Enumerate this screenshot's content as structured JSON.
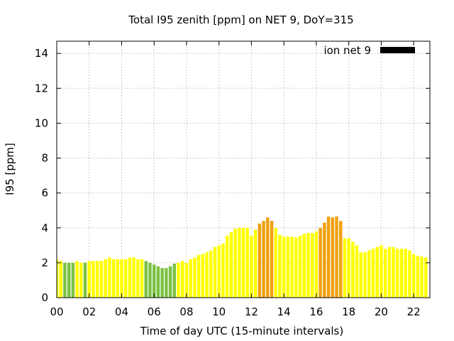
{
  "chart_data": {
    "type": "bar",
    "title": "Total I95 zenith [ppm] on NET 9, DoY=315",
    "xlabel": "Time of day UTC (15-minute intervals)",
    "ylabel": "I95 [ppm]",
    "xlim": [
      0,
      23
    ],
    "ylim": [
      0,
      14.7
    ],
    "x_tick_labels": [
      "00",
      "02",
      "04",
      "06",
      "08",
      "10",
      "12",
      "14",
      "16",
      "18",
      "20",
      "22"
    ],
    "y_tick_labels": [
      "0",
      "2",
      "4",
      "6",
      "8",
      "10",
      "12",
      "14"
    ],
    "grid": true,
    "legend_position": "top-right",
    "legend": {
      "label": "ion net 9",
      "color": "#000000"
    },
    "interval_hours": 0.25,
    "colors": {
      "low": "#7ac142",
      "mid": "#ffff00",
      "high": "#f0a010"
    },
    "series": [
      {
        "values": [
          2.2,
          2.1,
          2.0,
          2.0,
          2.0,
          2.1,
          2.0,
          2.0,
          2.1,
          2.1,
          2.1,
          2.1,
          2.2,
          2.3,
          2.2,
          2.2,
          2.2,
          2.2,
          2.3,
          2.3,
          2.2,
          2.2,
          2.1,
          2.0,
          1.9,
          1.8,
          1.7,
          1.7,
          1.8,
          1.95,
          2.0,
          2.1,
          2.0,
          2.2,
          2.3,
          2.45,
          2.5,
          2.6,
          2.7,
          2.9,
          3.0,
          3.1,
          3.55,
          3.75,
          3.95,
          4.0,
          4.0,
          4.0,
          3.55,
          3.9,
          4.25,
          4.4,
          4.6,
          4.4,
          4.0,
          3.6,
          3.5,
          3.5,
          3.5,
          3.45,
          3.55,
          3.65,
          3.7,
          3.7,
          3.8,
          4.0,
          4.3,
          4.65,
          4.6,
          4.65,
          4.4,
          3.4,
          3.4,
          3.2,
          3.0,
          2.6,
          2.6,
          2.7,
          2.8,
          2.9,
          3.0,
          2.8,
          2.9,
          2.9,
          2.8,
          2.8,
          2.8,
          2.7,
          2.5,
          2.4,
          2.35,
          2.3
        ],
        "levels": [
          "mid",
          "mid",
          "low",
          "low",
          "low",
          "mid",
          "mid",
          "low",
          "mid",
          "mid",
          "mid",
          "mid",
          "mid",
          "mid",
          "mid",
          "mid",
          "mid",
          "mid",
          "mid",
          "mid",
          "mid",
          "mid",
          "low",
          "low",
          "low",
          "low",
          "low",
          "low",
          "low",
          "low",
          "mid",
          "mid",
          "mid",
          "mid",
          "mid",
          "mid",
          "mid",
          "mid",
          "mid",
          "mid",
          "mid",
          "mid",
          "mid",
          "mid",
          "mid",
          "mid",
          "mid",
          "mid",
          "mid",
          "mid",
          "high",
          "high",
          "high",
          "high",
          "mid",
          "mid",
          "mid",
          "mid",
          "mid",
          "mid",
          "mid",
          "mid",
          "mid",
          "mid",
          "mid",
          "high",
          "high",
          "high",
          "high",
          "high",
          "high",
          "mid",
          "mid",
          "mid",
          "mid",
          "mid",
          "mid",
          "mid",
          "mid",
          "mid",
          "mid",
          "mid",
          "mid",
          "mid",
          "mid",
          "mid",
          "mid",
          "mid",
          "mid",
          "mid",
          "mid",
          "mid"
        ]
      }
    ]
  }
}
